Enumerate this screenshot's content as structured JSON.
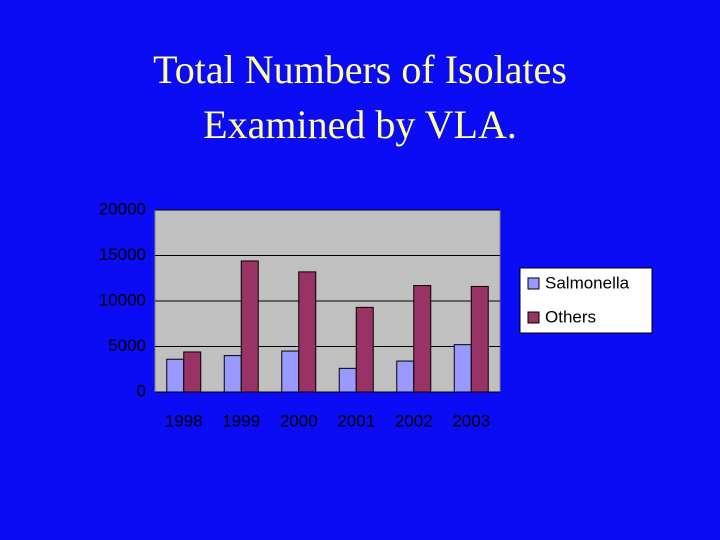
{
  "chart_data": {
    "type": "bar",
    "title": [
      "Total Numbers of Isolates",
      "Examined by VLA."
    ],
    "categories": [
      "1998",
      "1999",
      "2000",
      "2001",
      "2002",
      "2003"
    ],
    "series": [
      {
        "name": "Salmonella",
        "color": "#9999ff",
        "values": [
          3600,
          4000,
          4500,
          2600,
          3400,
          5200
        ]
      },
      {
        "name": "Others",
        "color": "#993366",
        "values": [
          4400,
          14400,
          13200,
          9300,
          11700,
          11600
        ]
      }
    ],
    "ylim": [
      0,
      20000
    ],
    "yticks": [
      0,
      5000,
      10000,
      15000,
      20000
    ],
    "grid": true,
    "legend": "right"
  }
}
